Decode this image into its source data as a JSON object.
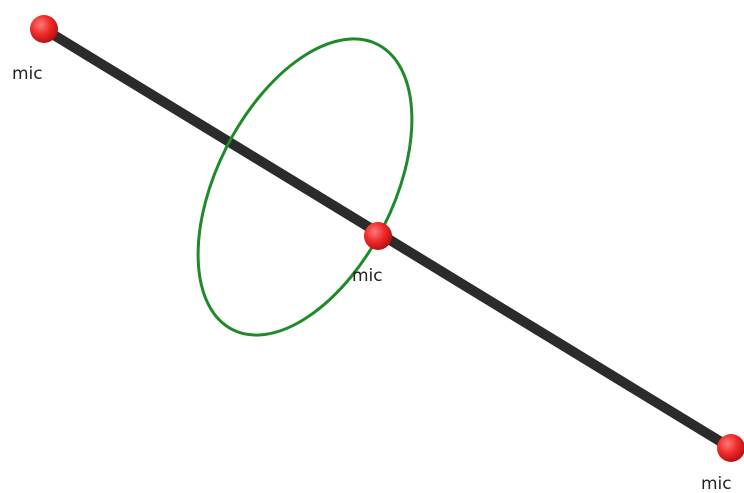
{
  "nodes": [
    {
      "label": "mic"
    },
    {
      "label": "mic"
    },
    {
      "label": "mic"
    }
  ]
}
